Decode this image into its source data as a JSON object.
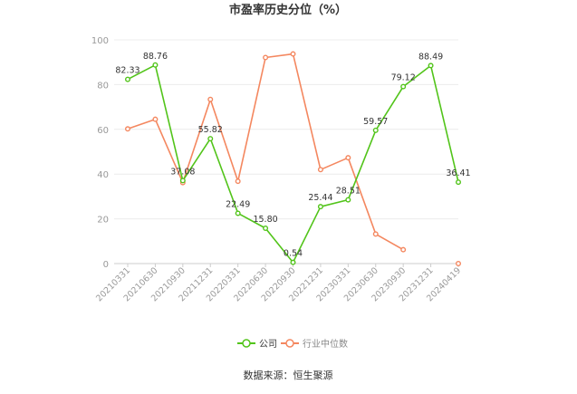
{
  "chart_data": {
    "type": "line",
    "title": "市盈率历史分位（%）",
    "source": "数据来源：恒生聚源",
    "xlabel": "",
    "ylabel": "",
    "ylim": [
      0,
      100
    ],
    "yticks": [
      0,
      20,
      40,
      60,
      80,
      100
    ],
    "grid": true,
    "legend_position": "bottom",
    "categories": [
      "20210331",
      "20210630",
      "20210930",
      "20211231",
      "20220331",
      "20220630",
      "20220930",
      "20221231",
      "20230331",
      "20230630",
      "20230930",
      "20231231",
      "20240419"
    ],
    "series": [
      {
        "name": "公司",
        "color": "#52c41a",
        "values": [
          82.33,
          88.76,
          37.08,
          55.82,
          22.49,
          15.8,
          0.54,
          25.44,
          28.51,
          59.57,
          79.12,
          88.49,
          36.41
        ],
        "labels": [
          "82.33",
          "88.76",
          "37.08",
          "55.82",
          "22.49",
          "15.80",
          "0.54",
          "25.44",
          "28.51",
          "59.57",
          "79.12",
          "88.49",
          "36.41"
        ]
      },
      {
        "name": "行业中位数",
        "color": "#f4875f",
        "values": [
          60.2,
          64.5,
          36.2,
          73.4,
          36.8,
          92.1,
          93.7,
          42.0,
          47.3,
          13.2,
          6.2,
          null,
          0.0
        ]
      }
    ]
  }
}
